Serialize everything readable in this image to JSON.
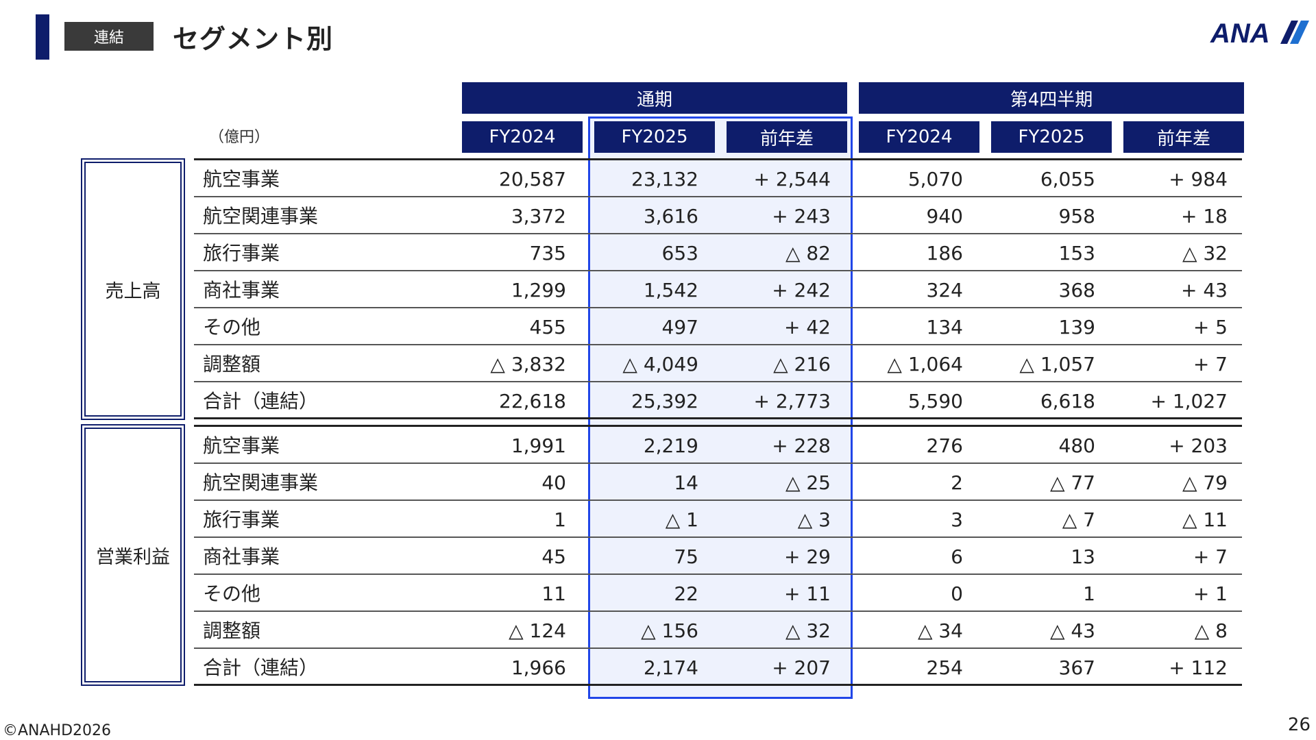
{
  "header": {
    "badge": "連結",
    "title": "セグメント別",
    "logo_text": "ANA"
  },
  "table": {
    "unit": "（億円）",
    "groups": [
      "通期",
      "第4四半期"
    ],
    "columns": [
      "FY2024",
      "FY2025",
      "前年差",
      "FY2024",
      "FY2025",
      "前年差"
    ],
    "sections": [
      {
        "title": "売上高",
        "rows": [
          {
            "label": "航空事業",
            "values": [
              "20,587",
              "23,132",
              "+ 2,544",
              "5,070",
              "6,055",
              "+ 984"
            ]
          },
          {
            "label": "航空関連事業",
            "values": [
              "3,372",
              "3,616",
              "+ 243",
              "940",
              "958",
              "+ 18"
            ]
          },
          {
            "label": "旅行事業",
            "values": [
              "735",
              "653",
              "△ 82",
              "186",
              "153",
              "△ 32"
            ]
          },
          {
            "label": "商社事業",
            "values": [
              "1,299",
              "1,542",
              "+ 242",
              "324",
              "368",
              "+ 43"
            ]
          },
          {
            "label": "その他",
            "values": [
              "455",
              "497",
              "+ 42",
              "134",
              "139",
              "+ 5"
            ]
          },
          {
            "label": "調整額",
            "values": [
              "△ 3,832",
              "△ 4,049",
              "△ 216",
              "△ 1,064",
              "△ 1,057",
              "+ 7"
            ]
          },
          {
            "label": "合計（連結）",
            "values": [
              "22,618",
              "25,392",
              "+ 2,773",
              "5,590",
              "6,618",
              "+ 1,027"
            ]
          }
        ]
      },
      {
        "title": "営業利益",
        "rows": [
          {
            "label": "航空事業",
            "values": [
              "1,991",
              "2,219",
              "+ 228",
              "276",
              "480",
              "+ 203"
            ]
          },
          {
            "label": "航空関連事業",
            "values": [
              "40",
              "14",
              "△ 25",
              "2",
              "△ 77",
              "△ 79"
            ]
          },
          {
            "label": "旅行事業",
            "values": [
              "1",
              "△ 1",
              "△ 3",
              "3",
              "△ 7",
              "△ 11"
            ]
          },
          {
            "label": "商社事業",
            "values": [
              "45",
              "75",
              "+ 29",
              "6",
              "13",
              "+ 7"
            ]
          },
          {
            "label": "その他",
            "values": [
              "11",
              "22",
              "+ 11",
              "0",
              "1",
              "+ 1"
            ]
          },
          {
            "label": "調整額",
            "values": [
              "△ 124",
              "△ 156",
              "△ 32",
              "△ 34",
              "△ 43",
              "△ 8"
            ]
          },
          {
            "label": "合計（連結）",
            "values": [
              "1,966",
              "2,174",
              "+ 207",
              "254",
              "367",
              "+ 112"
            ]
          }
        ]
      }
    ]
  },
  "footer": {
    "copyright": "©ANAHD2026",
    "page_number": "26"
  },
  "colors": {
    "navy": "#0e1d6b",
    "highlight_border": "#2146e8",
    "highlight_fill": "#eef2fd",
    "badge_bg": "#3a3a3a"
  }
}
